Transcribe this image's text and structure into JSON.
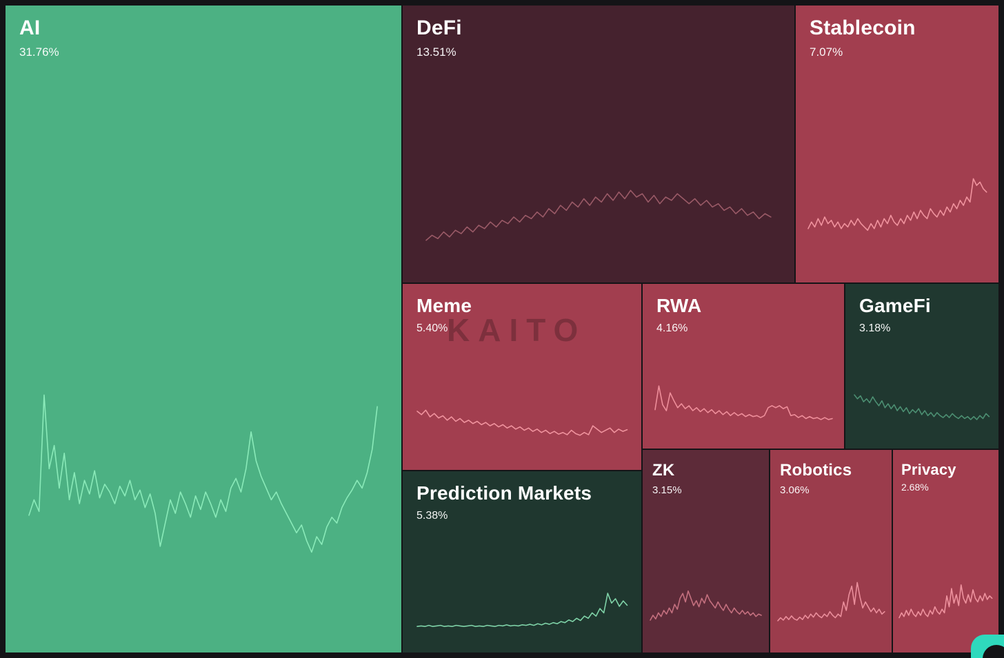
{
  "watermark": {
    "text": "KAITO"
  },
  "logo": {
    "name": "kaito-logo",
    "color": "#2fd9bd"
  },
  "chart_data": {
    "type": "treemap",
    "legend": "none",
    "unit": "percent mindshare",
    "tiles": [
      {
        "label": "AI",
        "value_pct": 31.76,
        "value_label": "31.76%",
        "color": "#4cb183",
        "spark_color": "#8aeab9",
        "trend": "volatile",
        "spark": [
          34,
          42,
          36,
          96,
          58,
          70,
          48,
          66,
          42,
          56,
          40,
          52,
          45,
          57,
          43,
          50,
          46,
          40,
          49,
          44,
          52,
          42,
          47,
          38,
          45,
          35,
          18,
          30,
          42,
          35,
          46,
          40,
          33,
          44,
          37,
          46,
          40,
          33,
          42,
          36,
          48,
          53,
          46,
          58,
          77,
          62,
          54,
          48,
          42,
          46,
          40,
          35,
          30,
          25,
          29,
          21,
          15,
          23,
          19,
          28,
          33,
          30,
          38,
          43,
          47,
          52,
          48,
          56,
          68,
          90
        ]
      },
      {
        "label": "DeFi",
        "value_pct": 13.51,
        "value_label": "13.51%",
        "color": "#45222e",
        "spark_color": "#9a5a67",
        "trend": "rising hump",
        "spark": [
          14,
          20,
          16,
          24,
          18,
          26,
          22,
          30,
          24,
          32,
          28,
          36,
          30,
          38,
          34,
          42,
          36,
          44,
          40,
          48,
          42,
          52,
          46,
          56,
          50,
          60,
          54,
          64,
          56,
          66,
          60,
          70,
          62,
          72,
          64,
          74,
          66,
          70,
          60,
          68,
          58,
          66,
          62,
          70,
          64,
          58,
          64,
          56,
          62,
          54,
          58,
          50,
          54,
          46,
          52,
          44,
          48,
          40,
          46,
          42
        ]
      },
      {
        "label": "Stablecoin",
        "value_pct": 7.07,
        "value_label": "7.07%",
        "color": "#a23e4f",
        "spark_color": "#f0939e",
        "trend": "up at end",
        "spark": [
          28,
          36,
          30,
          40,
          32,
          42,
          34,
          38,
          30,
          36,
          28,
          34,
          30,
          38,
          32,
          40,
          34,
          30,
          26,
          34,
          28,
          38,
          30,
          40,
          34,
          44,
          36,
          32,
          40,
          34,
          44,
          38,
          48,
          40,
          50,
          44,
          40,
          52,
          46,
          42,
          50,
          44,
          54,
          48,
          58,
          52,
          62,
          56,
          66,
          60,
          88,
          80,
          84,
          76,
          72
        ]
      },
      {
        "label": "Meme",
        "value_pct": 5.4,
        "value_label": "5.40%",
        "color": "#a23e4f",
        "spark_color": "#f0939e",
        "trend": "declining",
        "spark": [
          68,
          62,
          70,
          58,
          64,
          56,
          60,
          52,
          58,
          50,
          55,
          48,
          52,
          46,
          50,
          44,
          48,
          42,
          46,
          40,
          44,
          38,
          42,
          36,
          40,
          34,
          38,
          32,
          36,
          30,
          34,
          28,
          32,
          27,
          30,
          26,
          34,
          28,
          25,
          30,
          26,
          42,
          36,
          30,
          34,
          38,
          30,
          36,
          32,
          35
        ]
      },
      {
        "label": "RWA",
        "value_pct": 4.16,
        "value_label": "4.16%",
        "color": "#a23e4f",
        "spark_color": "#ee8e9a",
        "trend": "early spikes then flat",
        "spark": [
          42,
          90,
          52,
          40,
          76,
          60,
          46,
          54,
          44,
          50,
          40,
          46,
          38,
          44,
          36,
          42,
          34,
          40,
          32,
          38,
          30,
          36,
          30,
          34,
          28,
          32,
          28,
          30,
          26,
          30,
          46,
          50,
          46,
          50,
          44,
          48,
          30,
          32,
          26,
          30,
          24,
          28,
          24,
          26,
          22,
          26,
          22,
          24
        ]
      },
      {
        "label": "GameFi",
        "value_pct": 3.18,
        "value_label": "3.18%",
        "color": "#203830",
        "spark_color": "#4c8f72",
        "trend": "declining",
        "spark": [
          72,
          64,
          70,
          58,
          64,
          56,
          68,
          58,
          50,
          60,
          46,
          54,
          44,
          52,
          40,
          48,
          38,
          46,
          34,
          42,
          36,
          44,
          32,
          40,
          30,
          36,
          28,
          36,
          30,
          26,
          32,
          26,
          34,
          28,
          24,
          30,
          24,
          28,
          22,
          28,
          22,
          30,
          24,
          34,
          28
        ]
      },
      {
        "label": "Prediction Markets",
        "value_pct": 5.38,
        "value_label": "5.38%",
        "color": "#1f372f",
        "spark_color": "#7fd3a8",
        "trend": "flat then rising",
        "spark": [
          11,
          12,
          11,
          13,
          11,
          12,
          13,
          11,
          12,
          11,
          13,
          12,
          11,
          12,
          13,
          11,
          12,
          11,
          13,
          12,
          11,
          13,
          12,
          14,
          12,
          13,
          12,
          14,
          13,
          15,
          13,
          16,
          14,
          17,
          15,
          18,
          16,
          20,
          18,
          23,
          20,
          26,
          22,
          30,
          26,
          36,
          30,
          44,
          36,
          72,
          54,
          62,
          48,
          58,
          50
        ]
      },
      {
        "label": "ZK",
        "value_pct": 3.15,
        "value_label": "3.15%",
        "color": "#5d2b39",
        "spark_color": "#c4707f",
        "trend": "mid hump",
        "spark": [
          16,
          24,
          18,
          28,
          22,
          32,
          26,
          36,
          28,
          42,
          34,
          52,
          60,
          46,
          64,
          52,
          40,
          48,
          38,
          52,
          44,
          58,
          48,
          42,
          36,
          46,
          38,
          32,
          42,
          34,
          28,
          36,
          30,
          26,
          32,
          26,
          30,
          24,
          28,
          22,
          26,
          24
        ]
      },
      {
        "label": "Robotics",
        "value_pct": 3.06,
        "value_label": "3.06%",
        "color": "#9b3c4c",
        "spark_color": "#ea8e9b",
        "trend": "late spikes",
        "spark": [
          15,
          20,
          16,
          22,
          17,
          23,
          18,
          16,
          21,
          17,
          24,
          19,
          26,
          21,
          28,
          23,
          20,
          26,
          22,
          30,
          24,
          20,
          26,
          22,
          46,
          32,
          58,
          72,
          42,
          78,
          54,
          36,
          46,
          38,
          30,
          36,
          28,
          34,
          26,
          30
        ]
      },
      {
        "label": "Privacy",
        "value_pct": 2.68,
        "value_label": "2.68%",
        "color": "#a23e4f",
        "spark_color": "#ee929e",
        "trend": "late spikes",
        "spark": [
          20,
          28,
          22,
          32,
          24,
          34,
          26,
          22,
          30,
          24,
          34,
          26,
          22,
          32,
          26,
          38,
          30,
          26,
          34,
          28,
          56,
          38,
          68,
          44,
          58,
          40,
          74,
          52,
          44,
          58,
          46,
          66,
          52,
          46,
          56,
          48,
          60,
          50,
          56,
          52
        ]
      }
    ]
  }
}
